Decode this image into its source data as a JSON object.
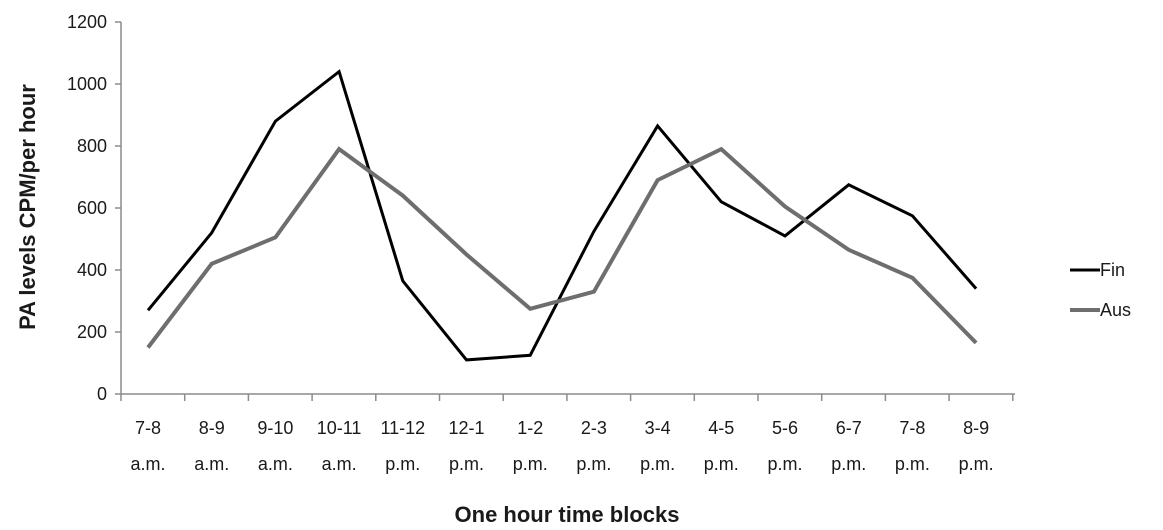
{
  "chart_data": {
    "type": "line",
    "title": "",
    "xlabel": "One hour time blocks",
    "ylabel": "PA levels CPM/per hour",
    "ylim": [
      0,
      1200
    ],
    "yticks": [
      0,
      200,
      400,
      600,
      800,
      1000,
      1200
    ],
    "grid": false,
    "legend_position": "right",
    "categories": [
      [
        "7-8",
        "a.m."
      ],
      [
        "8-9",
        "a.m."
      ],
      [
        "9-10",
        "a.m."
      ],
      [
        "10-11",
        "a.m."
      ],
      [
        "11-12",
        "p.m."
      ],
      [
        "12-1",
        "p.m."
      ],
      [
        "1-2",
        "p.m."
      ],
      [
        "2-3",
        "p.m."
      ],
      [
        "3-4",
        "p.m."
      ],
      [
        "4-5",
        "p.m."
      ],
      [
        "5-6",
        "p.m."
      ],
      [
        "6-7",
        "p.m."
      ],
      [
        "7-8",
        "p.m."
      ],
      [
        "8-9",
        "p.m."
      ]
    ],
    "series": [
      {
        "name": "Fin",
        "color": "#000000",
        "values": [
          270,
          520,
          880,
          1040,
          365,
          110,
          125,
          525,
          865,
          620,
          510,
          675,
          575,
          340
        ]
      },
      {
        "name": "Aus",
        "color": "#6e6e6e",
        "values": [
          150,
          420,
          505,
          790,
          640,
          450,
          275,
          330,
          690,
          790,
          605,
          465,
          375,
          165
        ]
      }
    ]
  }
}
